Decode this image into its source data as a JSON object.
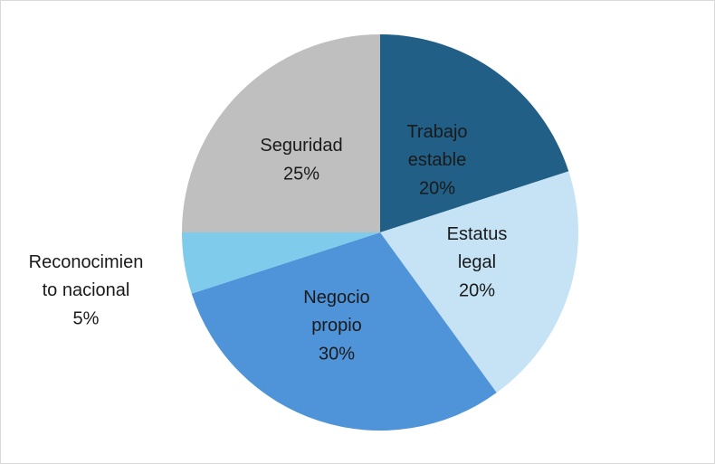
{
  "chart_data": {
    "type": "pie",
    "categories": [
      "Trabajo estable",
      "Estatus legal",
      "Negocio propio",
      "Reconocimiento nacional",
      "Seguridad"
    ],
    "values": [
      20,
      20,
      30,
      5,
      25
    ],
    "value_labels": [
      "20%",
      "20%",
      "30%",
      "5%",
      "25%"
    ],
    "colors": [
      "#215f87",
      "#c5e3f5",
      "#4f94d8",
      "#7ecbeb",
      "#bfbfbf"
    ]
  }
}
